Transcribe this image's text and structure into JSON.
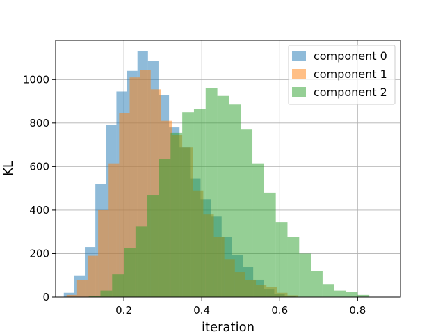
{
  "chart_data": {
    "type": "histogram",
    "title": "",
    "xlabel": "iteration",
    "ylabel": "KL",
    "xlim": [
      0.025,
      0.91
    ],
    "ylim": [
      0,
      1180
    ],
    "xticks": [
      0.2,
      0.4,
      0.6,
      0.8
    ],
    "yticks": [
      0,
      200,
      400,
      600,
      800,
      1000
    ],
    "grid": true,
    "legend_position": "top-right",
    "series": [
      {
        "name": "component 0",
        "color": "#1f77b4",
        "bins": [
          {
            "x0": 0.046,
            "x1": 0.073,
            "y": 20
          },
          {
            "x0": 0.073,
            "x1": 0.1,
            "y": 100
          },
          {
            "x0": 0.1,
            "x1": 0.127,
            "y": 230
          },
          {
            "x0": 0.127,
            "x1": 0.154,
            "y": 520
          },
          {
            "x0": 0.154,
            "x1": 0.181,
            "y": 790
          },
          {
            "x0": 0.181,
            "x1": 0.208,
            "y": 945
          },
          {
            "x0": 0.208,
            "x1": 0.235,
            "y": 1040
          },
          {
            "x0": 0.235,
            "x1": 0.262,
            "y": 1130
          },
          {
            "x0": 0.262,
            "x1": 0.289,
            "y": 1085
          },
          {
            "x0": 0.289,
            "x1": 0.316,
            "y": 930
          },
          {
            "x0": 0.316,
            "x1": 0.343,
            "y": 780
          },
          {
            "x0": 0.343,
            "x1": 0.37,
            "y": 690
          },
          {
            "x0": 0.37,
            "x1": 0.397,
            "y": 545
          },
          {
            "x0": 0.397,
            "x1": 0.424,
            "y": 450
          },
          {
            "x0": 0.424,
            "x1": 0.451,
            "y": 370
          },
          {
            "x0": 0.451,
            "x1": 0.478,
            "y": 275
          },
          {
            "x0": 0.478,
            "x1": 0.505,
            "y": 195
          },
          {
            "x0": 0.505,
            "x1": 0.532,
            "y": 140
          },
          {
            "x0": 0.532,
            "x1": 0.559,
            "y": 80
          },
          {
            "x0": 0.559,
            "x1": 0.586,
            "y": 35
          },
          {
            "x0": 0.586,
            "x1": 0.613,
            "y": 15
          },
          {
            "x0": 0.613,
            "x1": 0.64,
            "y": 5
          }
        ]
      },
      {
        "name": "component 1",
        "color": "#ff7f0e",
        "bins": [
          {
            "x0": 0.053,
            "x1": 0.08,
            "y": 10
          },
          {
            "x0": 0.08,
            "x1": 0.107,
            "y": 80
          },
          {
            "x0": 0.107,
            "x1": 0.134,
            "y": 190
          },
          {
            "x0": 0.134,
            "x1": 0.161,
            "y": 400
          },
          {
            "x0": 0.161,
            "x1": 0.188,
            "y": 615
          },
          {
            "x0": 0.188,
            "x1": 0.215,
            "y": 845
          },
          {
            "x0": 0.215,
            "x1": 0.242,
            "y": 1010
          },
          {
            "x0": 0.242,
            "x1": 0.269,
            "y": 1045
          },
          {
            "x0": 0.269,
            "x1": 0.296,
            "y": 955
          },
          {
            "x0": 0.296,
            "x1": 0.323,
            "y": 810
          },
          {
            "x0": 0.323,
            "x1": 0.35,
            "y": 745
          },
          {
            "x0": 0.35,
            "x1": 0.377,
            "y": 690
          },
          {
            "x0": 0.377,
            "x1": 0.404,
            "y": 490
          },
          {
            "x0": 0.404,
            "x1": 0.431,
            "y": 380
          },
          {
            "x0": 0.431,
            "x1": 0.458,
            "y": 275
          },
          {
            "x0": 0.458,
            "x1": 0.485,
            "y": 175
          },
          {
            "x0": 0.485,
            "x1": 0.512,
            "y": 115
          },
          {
            "x0": 0.512,
            "x1": 0.539,
            "y": 80
          },
          {
            "x0": 0.539,
            "x1": 0.566,
            "y": 55
          },
          {
            "x0": 0.566,
            "x1": 0.593,
            "y": 45
          },
          {
            "x0": 0.593,
            "x1": 0.62,
            "y": 20
          },
          {
            "x0": 0.62,
            "x1": 0.647,
            "y": 8
          }
        ]
      },
      {
        "name": "component 2",
        "color": "#2ca02c",
        "bins": [
          {
            "x0": 0.11,
            "x1": 0.14,
            "y": 5
          },
          {
            "x0": 0.14,
            "x1": 0.17,
            "y": 30
          },
          {
            "x0": 0.17,
            "x1": 0.2,
            "y": 105
          },
          {
            "x0": 0.2,
            "x1": 0.23,
            "y": 225
          },
          {
            "x0": 0.23,
            "x1": 0.26,
            "y": 325
          },
          {
            "x0": 0.26,
            "x1": 0.29,
            "y": 470
          },
          {
            "x0": 0.29,
            "x1": 0.32,
            "y": 635
          },
          {
            "x0": 0.32,
            "x1": 0.35,
            "y": 755
          },
          {
            "x0": 0.35,
            "x1": 0.38,
            "y": 850
          },
          {
            "x0": 0.38,
            "x1": 0.41,
            "y": 865
          },
          {
            "x0": 0.41,
            "x1": 0.44,
            "y": 960
          },
          {
            "x0": 0.44,
            "x1": 0.47,
            "y": 925
          },
          {
            "x0": 0.47,
            "x1": 0.5,
            "y": 885
          },
          {
            "x0": 0.5,
            "x1": 0.53,
            "y": 770
          },
          {
            "x0": 0.53,
            "x1": 0.56,
            "y": 615
          },
          {
            "x0": 0.56,
            "x1": 0.59,
            "y": 480
          },
          {
            "x0": 0.59,
            "x1": 0.62,
            "y": 345
          },
          {
            "x0": 0.62,
            "x1": 0.65,
            "y": 275
          },
          {
            "x0": 0.65,
            "x1": 0.68,
            "y": 200
          },
          {
            "x0": 0.68,
            "x1": 0.71,
            "y": 120
          },
          {
            "x0": 0.71,
            "x1": 0.74,
            "y": 60
          },
          {
            "x0": 0.74,
            "x1": 0.77,
            "y": 30
          },
          {
            "x0": 0.77,
            "x1": 0.8,
            "y": 25
          },
          {
            "x0": 0.8,
            "x1": 0.83,
            "y": 10
          }
        ]
      }
    ]
  }
}
